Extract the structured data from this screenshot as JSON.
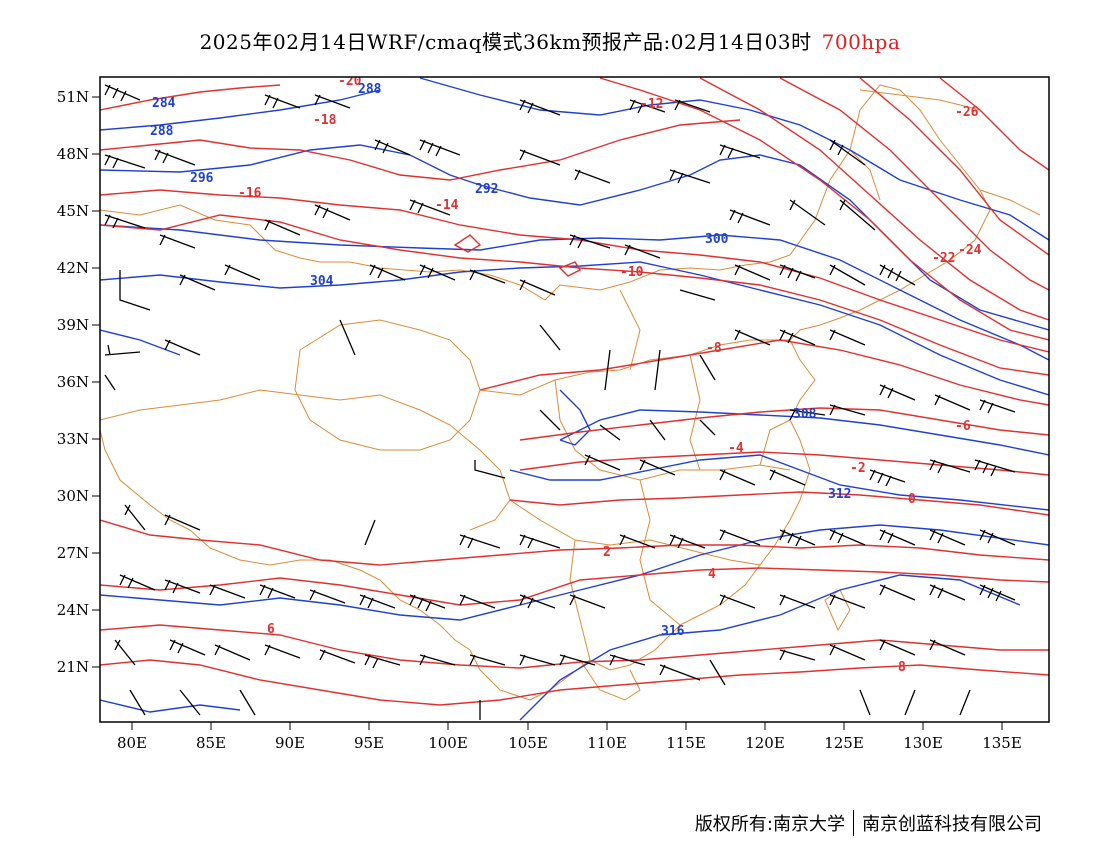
{
  "title": {
    "main": "2025年02月14日WRF/cmaq模式36km预报产品:02月14日03时",
    "level": "700hpa"
  },
  "colors": {
    "temperature_contour": "#e03030",
    "height_contour": "#2040d0",
    "boundary": "#d98c3a",
    "wind_barb": "#000000",
    "level_text": "#e02020"
  },
  "axes": {
    "lon_ticks": [
      "80E",
      "85E",
      "90E",
      "95E",
      "100E",
      "105E",
      "110E",
      "115E",
      "120E",
      "125E",
      "130E",
      "135E"
    ],
    "lat_ticks": [
      "51N",
      "48N",
      "45N",
      "42N",
      "39N",
      "36N",
      "33N",
      "30N",
      "27N",
      "24N",
      "21N"
    ],
    "lon_range": [
      78,
      138
    ],
    "lat_range": [
      17.5,
      52.5
    ]
  },
  "height_labels": [
    "284",
    "288",
    "288",
    "292",
    "296",
    "300",
    "304",
    "308",
    "312",
    "316"
  ],
  "temperature_labels": [
    "-26",
    "-24",
    "-22",
    "-20",
    "-18",
    "-16",
    "-14",
    "-12",
    "-10",
    "-8",
    "-6",
    "-4",
    "-2",
    "0",
    "2",
    "4",
    "6",
    "8"
  ],
  "footer": {
    "left": "版权所有:南京大学",
    "right": "南京创蓝科技有限公司"
  }
}
